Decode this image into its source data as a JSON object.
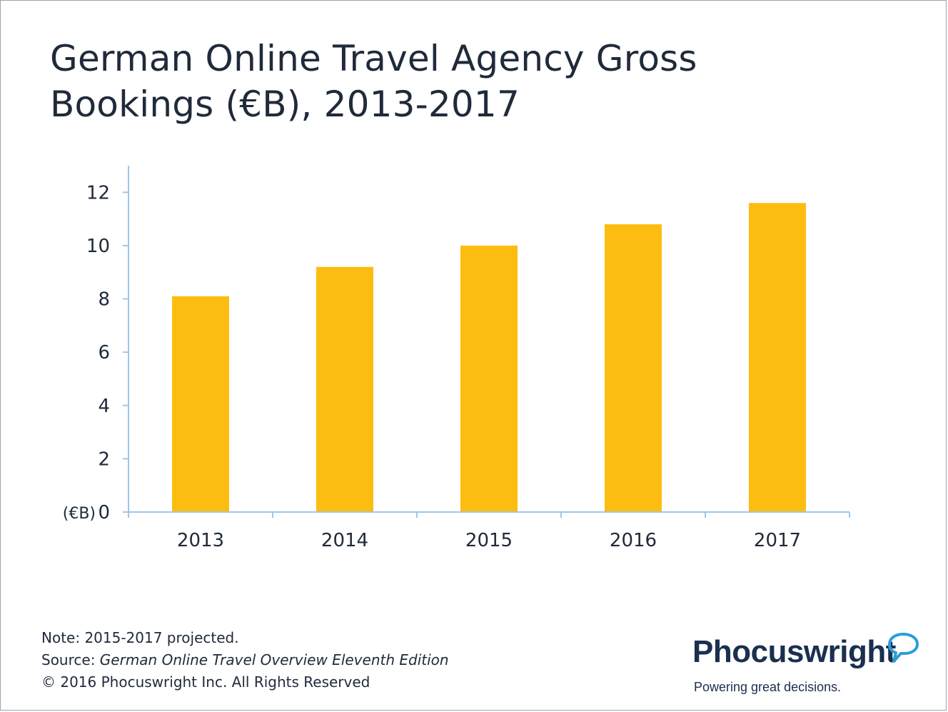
{
  "title": {
    "line1": "German Online Travel Agency Gross",
    "line2": "Bookings (€B), 2013-2017"
  },
  "chart_data": {
    "type": "bar",
    "categories": [
      "2013",
      "2014",
      "2015",
      "2016",
      "2017"
    ],
    "values": [
      8.1,
      9.2,
      10.0,
      10.8,
      11.6
    ],
    "y_ticks": [
      0,
      2,
      4,
      6,
      8,
      10,
      12
    ],
    "ylim": [
      0,
      13
    ],
    "y_unit_label": "(€B)",
    "grid": false,
    "legend": "none",
    "bar_color": "#FDBD10",
    "axis_color": "#9fc6e7"
  },
  "footer": {
    "note": "Note: 2015-2017 projected.",
    "source_prefix": "Source: ",
    "source_title": "German Online Travel Overview Eleventh Edition",
    "copyright": "© 2016 Phocuswright Inc. All Rights Reserved"
  },
  "logo": {
    "name": "Phocuswright",
    "tagline": "Powering great decisions.",
    "mark_icon": "speech-bubble-icon",
    "color": "#1b2f4f",
    "mark_color": "#2a9fd6"
  }
}
